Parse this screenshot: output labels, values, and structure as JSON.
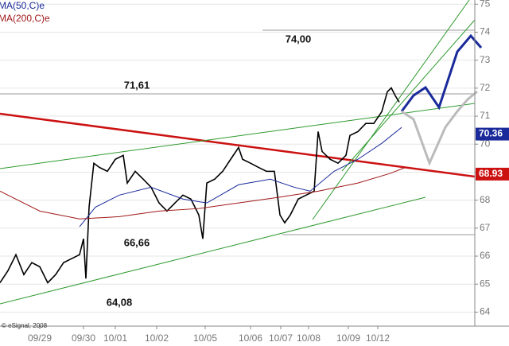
{
  "chart_data": {
    "type": "line",
    "legend": [
      "MA(50,C)e",
      "MA(200,C)e"
    ],
    "credit": "© eSignal, 2008",
    "annotations": [
      "74,00",
      "71,61",
      "66,66",
      "64,08"
    ],
    "xlim": [
      0,
      597
    ],
    "xticks": [
      {
        "value": 50,
        "label": "09/29"
      },
      {
        "value": 105,
        "label": "09/30"
      },
      {
        "value": 145,
        "label": "10/01"
      },
      {
        "value": 197,
        "label": "10/02"
      },
      {
        "value": 258,
        "label": "10/05"
      },
      {
        "value": 315,
        "label": "10/06"
      },
      {
        "value": 353,
        "label": "10/07"
      },
      {
        "value": 388,
        "label": "10/08"
      },
      {
        "value": 438,
        "label": "10/09"
      },
      {
        "value": 475,
        "label": "10/12"
      }
    ],
    "ylim": [
      63.5,
      75.15
    ],
    "yticks": [
      64,
      65,
      66,
      67,
      68,
      69,
      70,
      71,
      72,
      73,
      74,
      75
    ],
    "series": [
      {
        "color": "#000000",
        "x": [
          0,
          10,
          20,
          30,
          40,
          50,
          60,
          70,
          80,
          90,
          100,
          105,
          108,
          112,
          118,
          125,
          135,
          145,
          155,
          160,
          170,
          180,
          190,
          200,
          210,
          220,
          230,
          240,
          250,
          255,
          260,
          270,
          280,
          290,
          300,
          305,
          315,
          325,
          335,
          345,
          352,
          358,
          365,
          375,
          385,
          395,
          400,
          405,
          415,
          425,
          435,
          440,
          450,
          460,
          470,
          480,
          487,
          492,
          497,
          502
        ],
        "values": [
          65.05,
          65.48,
          66.05,
          65.34,
          65.77,
          65.62,
          65.05,
          65.34,
          65.77,
          65.91,
          66.05,
          66.62,
          65.2,
          67.75,
          69.32,
          69.17,
          69.03,
          69.46,
          69.6,
          68.61,
          69.03,
          68.75,
          68.46,
          67.9,
          67.61,
          67.9,
          68.18,
          68.04,
          67.47,
          66.62,
          68.61,
          68.75,
          69.03,
          69.46,
          69.88,
          69.46,
          69.32,
          69.17,
          69.03,
          69.03,
          67.47,
          67.19,
          67.47,
          68.04,
          68.18,
          68.32,
          70.45,
          69.74,
          69.46,
          69.32,
          69.6,
          70.31,
          70.45,
          70.74,
          70.74,
          71.16,
          71.87,
          72.01,
          71.73,
          71.5
        ]
      },
      {
        "name": "MA(50,C)e",
        "color": "#1a2a9a",
        "x": [
          100,
          120,
          150,
          190,
          230,
          260,
          300,
          340,
          370,
          390,
          420,
          450,
          480,
          505
        ],
        "values": [
          67.05,
          67.75,
          68.18,
          68.46,
          68.04,
          67.9,
          68.55,
          68.75,
          68.46,
          68.32,
          69.03,
          69.46,
          70.03,
          70.6
        ]
      },
      {
        "name": "MA(200,C)e",
        "color": "#a01818",
        "x": [
          0,
          50,
          100,
          150,
          200,
          250,
          300,
          350,
          400,
          450,
          490,
          510
        ],
        "values": [
          68.32,
          67.61,
          67.33,
          67.41,
          67.61,
          67.7,
          67.9,
          68.1,
          68.32,
          68.61,
          68.95,
          69.17
        ]
      }
    ],
    "price_tags": [
      {
        "value": 70.36,
        "color": "#1a2a9a"
      },
      {
        "value": 68.93,
        "color": "#cc1111"
      }
    ]
  }
}
